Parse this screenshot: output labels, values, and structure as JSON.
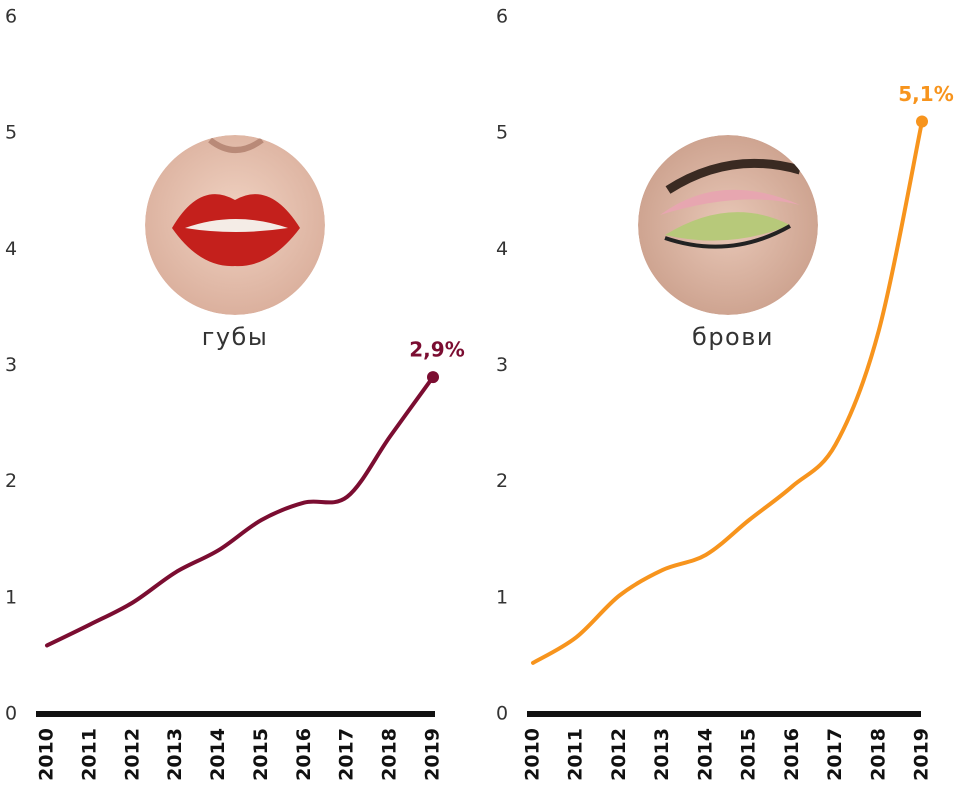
{
  "chart_data": [
    {
      "type": "line",
      "categories": [
        "2010",
        "2011",
        "2012",
        "2013",
        "2014",
        "2015",
        "2016",
        "2017",
        "2018",
        "2019"
      ],
      "series": [
        {
          "name": "губы",
          "color": "#7b0d31",
          "values": [
            0.59,
            0.77,
            0.96,
            1.22,
            1.41,
            1.67,
            1.82,
            1.87,
            2.39,
            2.9
          ],
          "value_labels": [
            null,
            null,
            null,
            null,
            null,
            null,
            null,
            null,
            null,
            "2,9%"
          ]
        }
      ],
      "ylim": [
        0,
        6
      ],
      "yticks": [
        0,
        1,
        2,
        3,
        4,
        5,
        6
      ]
    },
    {
      "type": "line",
      "categories": [
        "2010",
        "2011",
        "2012",
        "2013",
        "2014",
        "2015",
        "2016",
        "2017",
        "2018",
        "2019"
      ],
      "series": [
        {
          "name": "брови",
          "color": "#f7941d",
          "values": [
            0.44,
            0.66,
            1.02,
            1.24,
            1.37,
            1.67,
            1.96,
            2.32,
            3.3,
            5.1
          ],
          "value_labels": [
            null,
            null,
            null,
            null,
            null,
            null,
            null,
            null,
            null,
            "5,1%"
          ]
        }
      ],
      "ylim": [
        0,
        6
      ],
      "yticks": [
        0,
        1,
        2,
        3,
        4,
        5,
        6
      ]
    }
  ]
}
